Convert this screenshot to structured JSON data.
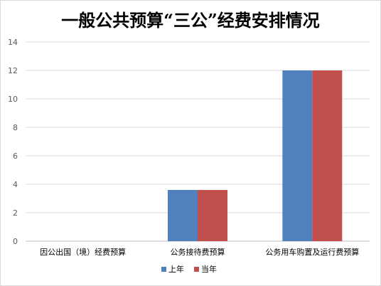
{
  "chart_data": {
    "type": "bar",
    "title": "一般公共预算“三公”经费安排情况",
    "categories": [
      "因公出国（境）经费预算",
      "公务接待费预算",
      "公务用车购置及运行费预算"
    ],
    "series": [
      {
        "name": "上年",
        "color": "#4f81bd",
        "values": [
          0,
          3.6,
          12
        ]
      },
      {
        "name": "当年",
        "color": "#c0504d",
        "values": [
          0,
          3.6,
          12
        ]
      }
    ],
    "ylim": [
      0,
      14
    ],
    "yticks": [
      0,
      2,
      4,
      6,
      8,
      10,
      12,
      14
    ],
    "grid": true,
    "legend_position": "bottom"
  }
}
